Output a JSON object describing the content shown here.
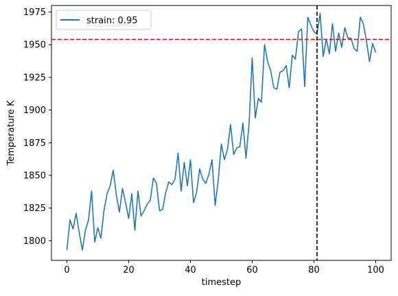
{
  "chart_data": {
    "type": "line",
    "title": "",
    "xlabel": "timestep",
    "ylabel": "Temperature K",
    "xlim": [
      -5,
      105
    ],
    "ylim": [
      1785,
      1980
    ],
    "xticks": [
      0,
      20,
      40,
      60,
      80,
      100
    ],
    "yticks": [
      1800,
      1825,
      1850,
      1875,
      1900,
      1925,
      1950,
      1975
    ],
    "grid": false,
    "legend_position": "upper-left",
    "series": [
      {
        "name": "strain: 0.95",
        "color": "#1f77b4",
        "x": [
          0,
          1,
          2,
          3,
          4,
          5,
          6,
          7,
          8,
          9,
          10,
          11,
          12,
          13,
          14,
          15,
          16,
          17,
          18,
          19,
          20,
          21,
          22,
          23,
          24,
          25,
          26,
          27,
          28,
          29,
          30,
          31,
          32,
          33,
          34,
          35,
          36,
          37,
          38,
          39,
          40,
          41,
          42,
          43,
          44,
          45,
          46,
          47,
          48,
          49,
          50,
          51,
          52,
          53,
          54,
          55,
          56,
          57,
          58,
          59,
          60,
          61,
          62,
          63,
          64,
          65,
          66,
          67,
          68,
          69,
          70,
          71,
          72,
          73,
          74,
          75,
          76,
          77,
          78,
          79,
          80,
          81,
          82,
          83,
          84,
          85,
          86,
          87,
          88,
          89,
          90,
          91,
          92,
          93,
          94,
          95,
          96,
          97,
          98,
          99,
          100
        ],
        "y": [
          1793,
          1816,
          1809,
          1821,
          1806,
          1793,
          1808,
          1816,
          1838,
          1799,
          1810,
          1802,
          1823,
          1836,
          1842,
          1854,
          1835,
          1822,
          1840,
          1829,
          1817,
          1836,
          1808,
          1838,
          1819,
          1823,
          1828,
          1831,
          1848,
          1844,
          1823,
          1824,
          1837,
          1845,
          1843,
          1847,
          1867,
          1838,
          1860,
          1842,
          1862,
          1829,
          1837,
          1855,
          1847,
          1844,
          1851,
          1862,
          1827,
          1846,
          1874,
          1862,
          1870,
          1889,
          1866,
          1871,
          1872,
          1890,
          1863,
          1890,
          1940,
          1894,
          1909,
          1906,
          1950,
          1937,
          1930,
          1917,
          1916,
          1929,
          1930,
          1934,
          1917,
          1942,
          1939,
          1960,
          1962,
          1918,
          1971,
          1965,
          1960,
          1958,
          1974,
          1941,
          1954,
          1943,
          1966,
          1945,
          1959,
          1948,
          1963,
          1955,
          1955,
          1947,
          1945,
          1971,
          1966,
          1953,
          1937,
          1951,
          1944
        ]
      }
    ],
    "reference_lines": [
      {
        "orientation": "horizontal",
        "value": 1954,
        "color": "#ff0000",
        "style": "dashed"
      },
      {
        "orientation": "vertical",
        "value": 81,
        "color": "#000000",
        "style": "dashed"
      }
    ]
  }
}
